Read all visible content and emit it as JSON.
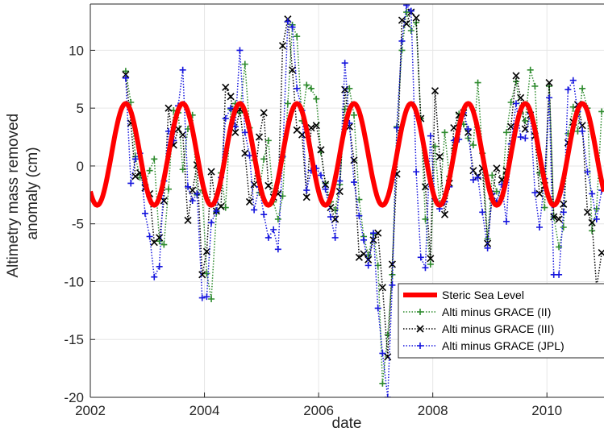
{
  "chart_data": {
    "type": "line",
    "title": "",
    "xlabel": "date",
    "ylabel_lines": [
      "Altimetry mass removed",
      "anomaly (cm)"
    ],
    "xlim": [
      2002,
      2011
    ],
    "ylim": [
      -20,
      14
    ],
    "xticks": [
      2002,
      2004,
      2006,
      2008,
      2010
    ],
    "yticks": [
      10,
      5,
      0,
      -5,
      -10,
      -15,
      -20
    ],
    "grid": true,
    "legend_position": "bottom-right",
    "series": [
      {
        "name": "Steric Sea Level",
        "color": "#ff0000",
        "style": "solid-thick",
        "model": {
          "kind": "annual-sinusoid",
          "mean": 1.0,
          "amplitude": 4.4,
          "peak_phase": 0.62
        },
        "x": [],
        "y": []
      },
      {
        "name": "Alti minus GRACE (II)",
        "color": "#2e8b2e",
        "marker": "+",
        "x": [
          2002.62,
          2002.71,
          2002.79,
          2002.87,
          2002.96,
          2003.04,
          2003.12,
          2003.21,
          2003.29,
          2003.37,
          2003.46,
          2003.54,
          2003.62,
          2003.71,
          2003.79,
          2003.87,
          2003.96,
          2004.04,
          2004.12,
          2004.21,
          2004.29,
          2004.37,
          2004.46,
          2004.54,
          2004.62,
          2004.71,
          2004.79,
          2004.87,
          2004.96,
          2005.04,
          2005.12,
          2005.21,
          2005.29,
          2005.37,
          2005.46,
          2005.54,
          2005.62,
          2005.71,
          2005.79,
          2005.87,
          2005.96,
          2006.04,
          2006.12,
          2006.21,
          2006.29,
          2006.37,
          2006.46,
          2006.54,
          2006.62,
          2006.71,
          2006.79,
          2006.87,
          2006.96,
          2007.04,
          2007.12,
          2007.21,
          2007.29,
          2007.37,
          2007.46,
          2007.54,
          2007.62,
          2007.71,
          2007.79,
          2007.87,
          2007.96,
          2008.04,
          2008.12,
          2008.21,
          2008.29,
          2008.37,
          2008.46,
          2008.54,
          2008.62,
          2008.71,
          2008.79,
          2008.87,
          2008.96,
          2009.04,
          2009.12,
          2009.21,
          2009.29,
          2009.37,
          2009.46,
          2009.54,
          2009.62,
          2009.71,
          2009.79,
          2009.87,
          2009.96,
          2010.04,
          2010.12,
          2010.21,
          2010.29,
          2010.37,
          2010.46,
          2010.54,
          2010.62,
          2010.71,
          2010.79,
          2010.87,
          2010.96
        ],
        "y": [
          8.2,
          5.5,
          0.8,
          -1.0,
          -1.6,
          -0.4,
          0.6,
          -6.5,
          -6.8,
          -2.0,
          4.8,
          4.6,
          -0.3,
          3.2,
          4.4,
          -2.5,
          -2.1,
          -9.3,
          -11.5,
          -4.0,
          -0.6,
          -3.6,
          4.9,
          5.4,
          4.6,
          8.8,
          3.3,
          0.5,
          -2.3,
          0.6,
          2.2,
          -3.1,
          -4.6,
          -2.6,
          5.4,
          12.2,
          11.2,
          3.9,
          7.0,
          6.7,
          5.8,
          1.2,
          -1.5,
          -3.1,
          -3.8,
          -1.6,
          4.9,
          6.7,
          4.4,
          -2.9,
          -6.1,
          -7.7,
          -5.9,
          -8.6,
          -18.8,
          -14.6,
          -9.4,
          3.4,
          10.0,
          13.3,
          11.7,
          12.4,
          4.1,
          -4.6,
          -8.5,
          1.7,
          -3.4,
          2.9,
          -0.9,
          1.5,
          4.5,
          3.6,
          2.4,
          1.8,
          7.2,
          1.1,
          -6.3,
          -0.8,
          -2.2,
          -2.6,
          2.9,
          5.5,
          7.3,
          4.6,
          3.9,
          8.3,
          6.9,
          -0.6,
          -3.6,
          6.9,
          -4.4,
          -7.0,
          -5.3,
          2.8,
          5.1,
          3.0,
          6.7,
          5.0,
          -5.6,
          -3.7,
          4.7
        ]
      },
      {
        "name": "Alti minus GRACE (III)",
        "color": "#000000",
        "marker": "x",
        "x": [
          2002.62,
          2002.71,
          2002.79,
          2002.87,
          2002.96,
          2003.04,
          2003.12,
          2003.21,
          2003.29,
          2003.37,
          2003.46,
          2003.54,
          2003.62,
          2003.71,
          2003.79,
          2003.87,
          2003.96,
          2004.04,
          2004.12,
          2004.21,
          2004.29,
          2004.37,
          2004.46,
          2004.54,
          2004.62,
          2004.71,
          2004.79,
          2004.87,
          2004.96,
          2005.04,
          2005.12,
          2005.21,
          2005.29,
          2005.37,
          2005.46,
          2005.54,
          2005.62,
          2005.71,
          2005.79,
          2005.87,
          2005.96,
          2006.04,
          2006.12,
          2006.21,
          2006.29,
          2006.37,
          2006.46,
          2006.54,
          2006.62,
          2006.71,
          2006.79,
          2006.87,
          2006.96,
          2007.04,
          2007.12,
          2007.21,
          2007.29,
          2007.37,
          2007.46,
          2007.54,
          2007.62,
          2007.71,
          2007.79,
          2007.87,
          2007.96,
          2008.04,
          2008.12,
          2008.21,
          2008.29,
          2008.37,
          2008.46,
          2008.54,
          2008.62,
          2008.71,
          2008.79,
          2008.87,
          2008.96,
          2009.04,
          2009.12,
          2009.21,
          2009.29,
          2009.37,
          2009.46,
          2009.54,
          2009.62,
          2009.71,
          2009.79,
          2009.87,
          2009.96,
          2010.04,
          2010.12,
          2010.21,
          2010.29,
          2010.37,
          2010.46,
          2010.54,
          2010.62,
          2010.71,
          2010.79,
          2010.87,
          2010.96
        ],
        "y": [
          7.9,
          3.7,
          -0.9,
          -0.6,
          -1.9,
          -2.4,
          -6.6,
          -6.2,
          -3.0,
          5.0,
          1.8,
          3.2,
          2.7,
          -4.7,
          -2.1,
          0.1,
          -9.4,
          -7.4,
          -0.5,
          -3.9,
          -3.5,
          6.8,
          6.0,
          2.9,
          4.9,
          1.1,
          -3.1,
          -1.6,
          2.5,
          4.6,
          -1.7,
          -2.7,
          -2.4,
          10.4,
          12.7,
          8.3,
          3.1,
          2.7,
          -2.7,
          3.3,
          3.5,
          1.4,
          -1.6,
          -3.6,
          -4.6,
          -2.2,
          6.6,
          3.4,
          0.5,
          -7.9,
          -7.6,
          -8.1,
          -6.4,
          -5.8,
          -10.5,
          -16.5,
          -8.5,
          -0.7,
          12.6,
          12.3,
          13.3,
          12.8,
          4.1,
          -1.8,
          -8.0,
          6.5,
          0.8,
          -4.2,
          -1.5,
          3.3,
          4.4,
          4.6,
          2.9,
          -0.4,
          -0.9,
          -0.2,
          -6.7,
          -2.6,
          -0.2,
          -1.2,
          -0.4,
          3.4,
          7.8,
          5.9,
          3.2,
          4.4,
          2.6,
          -2.4,
          -1.7,
          7.2,
          -4.4,
          -4.6,
          -3.3,
          2.0,
          3.8,
          5.3,
          3.5,
          -4.0,
          -4.9,
          -10.5,
          -7.5
        ]
      },
      {
        "name": "Alti minus GRACE (JPL)",
        "color": "#1515dd",
        "marker": "+",
        "x": [
          2002.62,
          2002.71,
          2002.79,
          2002.87,
          2002.96,
          2003.04,
          2003.12,
          2003.21,
          2003.29,
          2003.37,
          2003.46,
          2003.54,
          2003.62,
          2003.71,
          2003.79,
          2003.87,
          2003.96,
          2004.04,
          2004.12,
          2004.21,
          2004.29,
          2004.37,
          2004.46,
          2004.54,
          2004.62,
          2004.71,
          2004.79,
          2004.87,
          2004.96,
          2005.04,
          2005.12,
          2005.21,
          2005.29,
          2005.37,
          2005.46,
          2005.54,
          2005.62,
          2005.71,
          2005.79,
          2005.87,
          2005.96,
          2006.04,
          2006.12,
          2006.21,
          2006.29,
          2006.37,
          2006.46,
          2006.54,
          2006.62,
          2006.71,
          2006.79,
          2006.87,
          2006.96,
          2007.04,
          2007.12,
          2007.21,
          2007.29,
          2007.37,
          2007.46,
          2007.54,
          2007.62,
          2007.71,
          2007.79,
          2007.87,
          2007.96,
          2008.04,
          2008.12,
          2008.21,
          2008.29,
          2008.37,
          2008.46,
          2008.54,
          2008.62,
          2008.71,
          2008.79,
          2008.87,
          2008.96,
          2009.04,
          2009.12,
          2009.21,
          2009.29,
          2009.37,
          2009.46,
          2009.54,
          2009.62,
          2009.71,
          2009.79,
          2009.87,
          2009.96,
          2010.04,
          2010.12,
          2010.21,
          2010.29,
          2010.37,
          2010.46,
          2010.54,
          2010.62,
          2010.71,
          2010.79,
          2010.87,
          2010.96
        ],
        "y": [
          7.6,
          -1.5,
          0.6,
          1.1,
          -4.1,
          -6.1,
          -9.6,
          -8.7,
          -1.3,
          3.0,
          2.2,
          5.2,
          8.3,
          -1.8,
          -3.0,
          -2.4,
          -11.4,
          -11.3,
          -4.9,
          -3.9,
          -1.0,
          4.1,
          5.0,
          3.4,
          10.0,
          2.9,
          0.9,
          -3.8,
          -1.8,
          -4.2,
          -6.2,
          -5.5,
          -7.2,
          0.8,
          12.5,
          12.0,
          6.7,
          4.8,
          -2.1,
          -0.4,
          -0.2,
          -0.8,
          -2.0,
          -4.4,
          -6.2,
          -1.3,
          8.9,
          3.7,
          -1.4,
          -4.3,
          -6.4,
          -8.6,
          -5.8,
          -12.3,
          -16.2,
          -20.0,
          -10.3,
          3.3,
          10.8,
          13.9,
          13.4,
          -0.5,
          -7.9,
          -8.8,
          2.6,
          -2.9,
          -3.7,
          -3.1,
          -1.8,
          2.2,
          2.3,
          4.6,
          3.2,
          -1.2,
          -1.0,
          -4.0,
          -7.1,
          -2.4,
          -3.1,
          -1.6,
          -4.8,
          1.9,
          5.4,
          2.5,
          2.4,
          4.5,
          -2.3,
          -5.3,
          -1.1,
          5.9,
          -9.4,
          -9.4,
          -4.0,
          6.6,
          7.4,
          4.7,
          3.0,
          -0.5,
          -2.4,
          -4.6,
          -2.1
        ]
      }
    ]
  }
}
